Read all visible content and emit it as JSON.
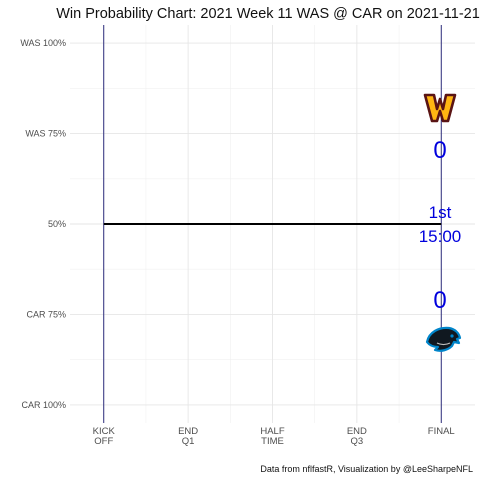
{
  "chart_data": {
    "type": "line",
    "title": "Win Probability Chart: 2021 Week 11 WAS @ CAR on 2021-11-21",
    "xlabel": "",
    "ylabel": "",
    "x_ticks": [
      {
        "value": 0,
        "lines": [
          "KICK",
          "OFF"
        ]
      },
      {
        "value": 15,
        "lines": [
          "END",
          "Q1"
        ]
      },
      {
        "value": 30,
        "lines": [
          "HALF",
          "TIME"
        ]
      },
      {
        "value": 45,
        "lines": [
          "END",
          "Q3"
        ]
      },
      {
        "value": 60,
        "lines": [
          "FINAL"
        ]
      }
    ],
    "y_ticks": [
      {
        "value": 1.0,
        "label": "WAS 100%"
      },
      {
        "value": 0.75,
        "label": "WAS 75%"
      },
      {
        "value": 0.5,
        "label": "50%"
      },
      {
        "value": 0.25,
        "label": "CAR 75%"
      },
      {
        "value": 0.0,
        "label": "CAR 100%"
      }
    ],
    "xlim": [
      -6,
      66
    ],
    "ylim": [
      -0.05,
      1.05
    ],
    "grid": true,
    "vertical_lines": [
      0,
      60
    ],
    "series": [
      {
        "x": [
          0,
          60
        ],
        "y": [
          0.5,
          0.5
        ]
      }
    ],
    "away_team": {
      "abbr": "WAS",
      "score": "0",
      "primary": "#5A1414",
      "secondary": "#FFB612"
    },
    "home_team": {
      "abbr": "CAR",
      "score": "0",
      "primary": "#0085CA",
      "secondary": "#101820"
    },
    "game_clock": {
      "quarter": "1st",
      "time": "15:00"
    },
    "caption": "Data from nflfastR, Visualization by @LeeSharpeNFL",
    "colors": {
      "line": "#000000",
      "vline": "#191970",
      "score_text": "#0000DD"
    }
  }
}
